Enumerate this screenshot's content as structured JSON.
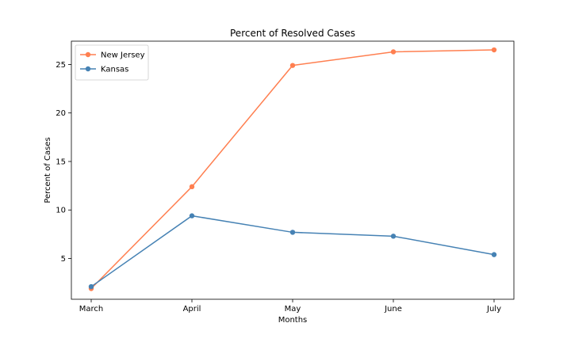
{
  "chart_data": {
    "type": "line",
    "title": "Percent of Resolved Cases",
    "xlabel": "Months",
    "ylabel": "Percent of Cases",
    "categories": [
      "March",
      "April",
      "May",
      "June",
      "July"
    ],
    "ylim": [
      0.8,
      27.4
    ],
    "yticks": [
      5,
      10,
      15,
      20,
      25
    ],
    "grid": false,
    "legend": "top-left",
    "series": [
      {
        "name": "New Jersey",
        "color": "#ff7f50",
        "values": [
          1.9,
          12.4,
          24.9,
          26.3,
          26.5
        ]
      },
      {
        "name": "Kansas",
        "color": "#4682b4",
        "values": [
          2.1,
          9.4,
          7.7,
          7.3,
          5.4
        ]
      }
    ]
  }
}
